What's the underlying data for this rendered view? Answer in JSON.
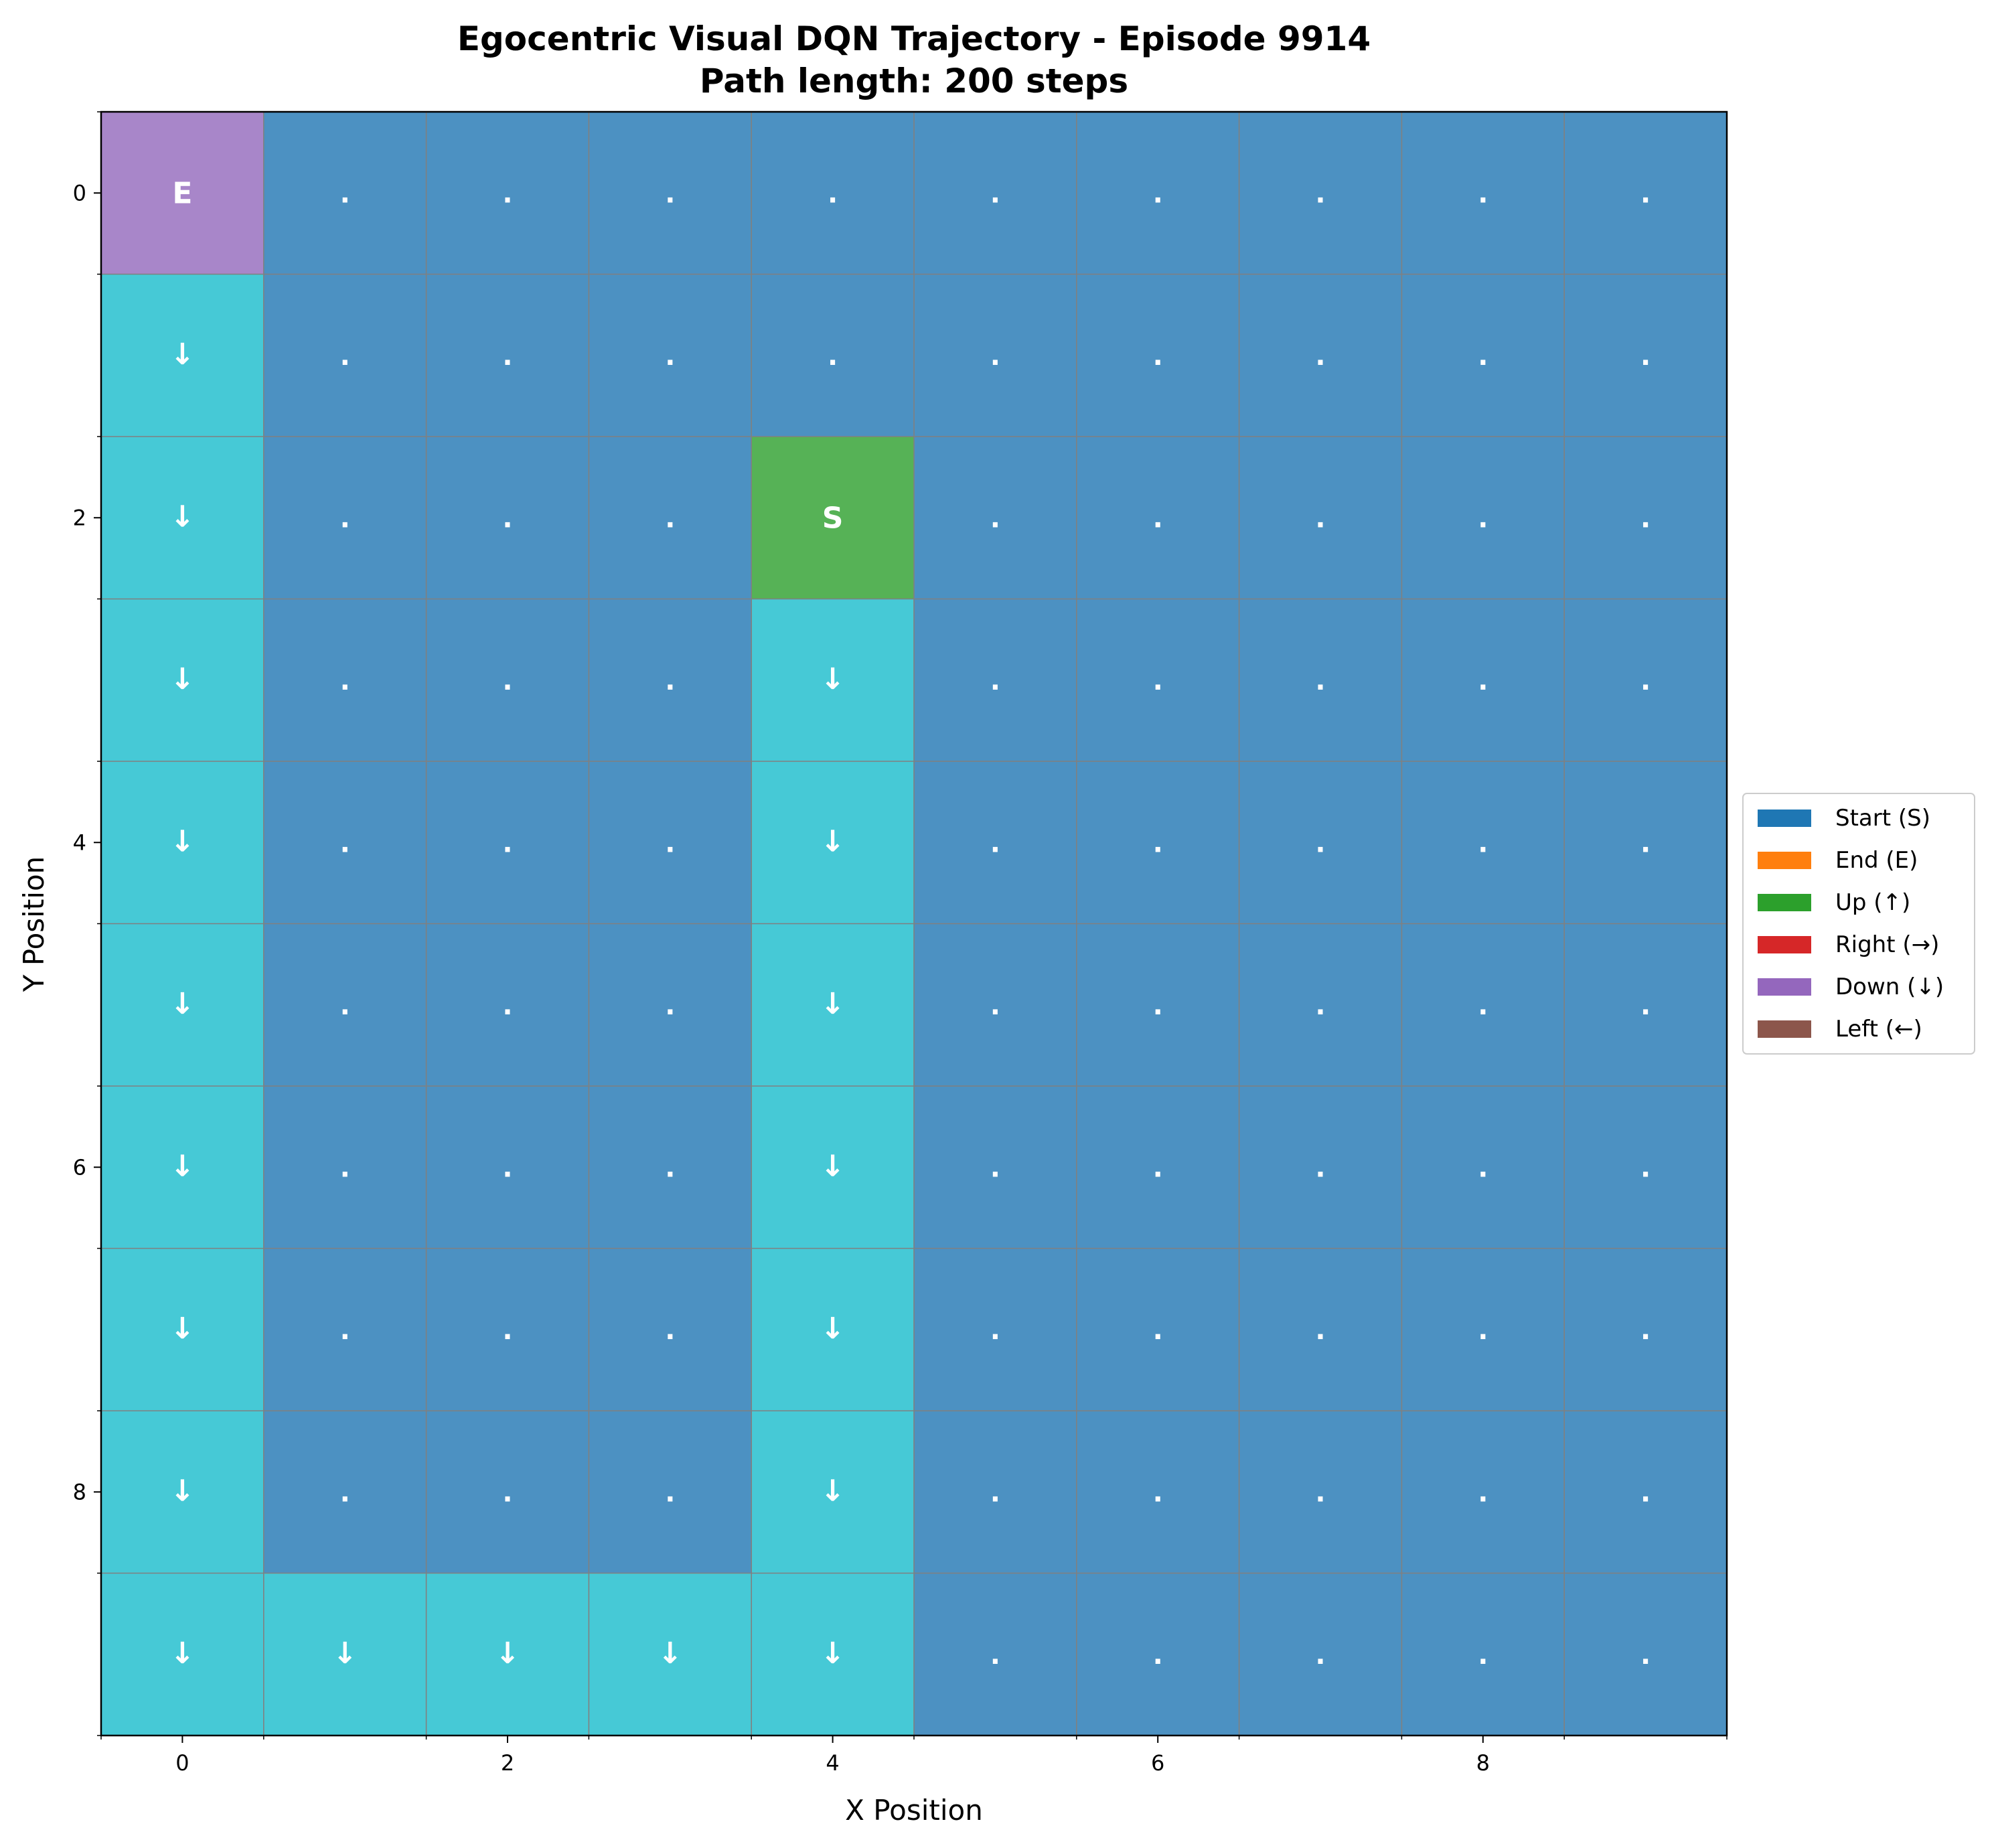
{
  "chart_data": {
    "type": "heatmap",
    "title": "Egocentric Visual DQN Trajectory - Episode 9914",
    "subtitle": "Path length: 200 steps",
    "xlabel": "X Position",
    "ylabel": "Y Position",
    "x_ticks": [
      "0",
      "2",
      "4",
      "6",
      "8"
    ],
    "y_ticks": [
      "0",
      "2",
      "4",
      "6",
      "8"
    ],
    "xlim": [
      -0.5,
      9.5
    ],
    "ylim": [
      9.5,
      -0.5
    ],
    "grid": true,
    "legend_position": "center right, outside plot",
    "legend": [
      {
        "label": "Start (S)",
        "color": "#1f77b4"
      },
      {
        "label": "End (E)",
        "color": "#ff7f0e"
      },
      {
        "label": "Up (↑)",
        "color": "#2ca02c"
      },
      {
        "label": "Right (→)",
        "color": "#d62728"
      },
      {
        "label": "Down (↓)",
        "color": "#9467bd"
      },
      {
        "label": "Left (←)",
        "color": "#8c564b"
      }
    ],
    "cell_colors": {
      "background": "#4c91c2",
      "path": "#46c9d6",
      "start": "#56b256",
      "end": "#a886c9"
    },
    "cells": [
      {
        "x": 0,
        "y": 0,
        "kind": "end",
        "label": "E"
      },
      {
        "x": 4,
        "y": 2,
        "kind": "start",
        "label": "S"
      },
      {
        "x": 0,
        "y": 1,
        "kind": "path",
        "label": "↓"
      },
      {
        "x": 0,
        "y": 2,
        "kind": "path",
        "label": "↓"
      },
      {
        "x": 0,
        "y": 3,
        "kind": "path",
        "label": "↓"
      },
      {
        "x": 0,
        "y": 4,
        "kind": "path",
        "label": "↓"
      },
      {
        "x": 0,
        "y": 5,
        "kind": "path",
        "label": "↓"
      },
      {
        "x": 0,
        "y": 6,
        "kind": "path",
        "label": "↓"
      },
      {
        "x": 0,
        "y": 7,
        "kind": "path",
        "label": "↓"
      },
      {
        "x": 0,
        "y": 8,
        "kind": "path",
        "label": "↓"
      },
      {
        "x": 0,
        "y": 9,
        "kind": "path",
        "label": "↓"
      },
      {
        "x": 1,
        "y": 9,
        "kind": "path",
        "label": "↓"
      },
      {
        "x": 2,
        "y": 9,
        "kind": "path",
        "label": "↓"
      },
      {
        "x": 3,
        "y": 9,
        "kind": "path",
        "label": "↓"
      },
      {
        "x": 4,
        "y": 9,
        "kind": "path",
        "label": "↓"
      },
      {
        "x": 4,
        "y": 3,
        "kind": "path",
        "label": "↓"
      },
      {
        "x": 4,
        "y": 4,
        "kind": "path",
        "label": "↓"
      },
      {
        "x": 4,
        "y": 5,
        "kind": "path",
        "label": "↓"
      },
      {
        "x": 4,
        "y": 6,
        "kind": "path",
        "label": "↓"
      },
      {
        "x": 4,
        "y": 7,
        "kind": "path",
        "label": "↓"
      },
      {
        "x": 4,
        "y": 8,
        "kind": "path",
        "label": "↓"
      }
    ],
    "empty_label": "."
  }
}
